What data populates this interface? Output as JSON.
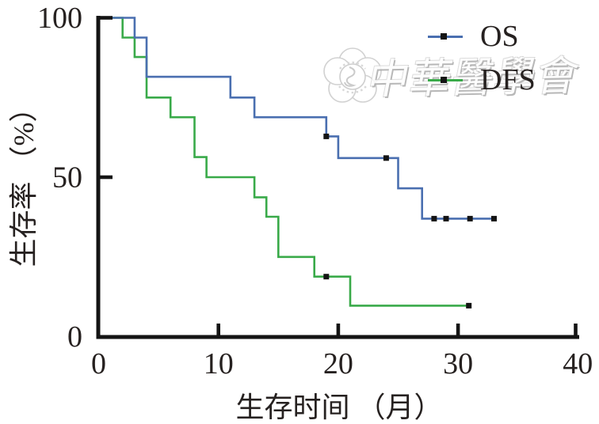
{
  "figure": {
    "background": "#ffffff"
  },
  "watermark": {
    "text": "中華醫學會",
    "logo": "cma-flower-seal"
  },
  "legend": {
    "position": "top-right",
    "marker_color": "#141414",
    "items": [
      {
        "label": "OS",
        "color": "#4a6fb0"
      },
      {
        "label": "DFS",
        "color": "#39aa49"
      }
    ]
  },
  "axes": {
    "x": {
      "title": "生存时间 （月）",
      "ticks": [
        0,
        10,
        20,
        30,
        40
      ],
      "range": [
        0,
        40
      ]
    },
    "y": {
      "title": "生存率 （%）",
      "ticks": [
        0,
        50,
        100
      ],
      "range": [
        0,
        100
      ]
    }
  },
  "chart_data": {
    "type": "line",
    "subtype": "kaplan-meier-step",
    "title": "",
    "xlabel": "生存时间 （月）",
    "ylabel": "生存率 （%）",
    "xlim": [
      0,
      40
    ],
    "ylim": [
      0,
      100
    ],
    "grid": false,
    "legend_position": "top-right",
    "axis_color": "#141414",
    "series": [
      {
        "name": "OS",
        "color": "#4a6fb0",
        "steps": [
          [
            0,
            100
          ],
          [
            3,
            93.8
          ],
          [
            4,
            81.5
          ],
          [
            11,
            75
          ],
          [
            13,
            68.8
          ],
          [
            19,
            62.8
          ],
          [
            20,
            56
          ],
          [
            25,
            46.5
          ],
          [
            27,
            37
          ]
        ],
        "end": 33.1,
        "censors": [
          [
            19,
            62.8
          ],
          [
            24,
            56
          ],
          [
            28,
            37
          ],
          [
            29,
            37
          ],
          [
            31,
            37
          ],
          [
            33,
            37
          ]
        ]
      },
      {
        "name": "DFS",
        "color": "#39aa49",
        "steps": [
          [
            0,
            100
          ],
          [
            2,
            93.8
          ],
          [
            3,
            87.7
          ],
          [
            4,
            75
          ],
          [
            6,
            68.8
          ],
          [
            8,
            56.3
          ],
          [
            9,
            50
          ],
          [
            13,
            43.7
          ],
          [
            14,
            37.6
          ],
          [
            15,
            25
          ],
          [
            18,
            18.8
          ],
          [
            21,
            9.7
          ]
        ],
        "end": 31,
        "censors": [
          [
            19,
            18.8
          ],
          [
            30.9,
            9.7
          ]
        ]
      }
    ]
  }
}
